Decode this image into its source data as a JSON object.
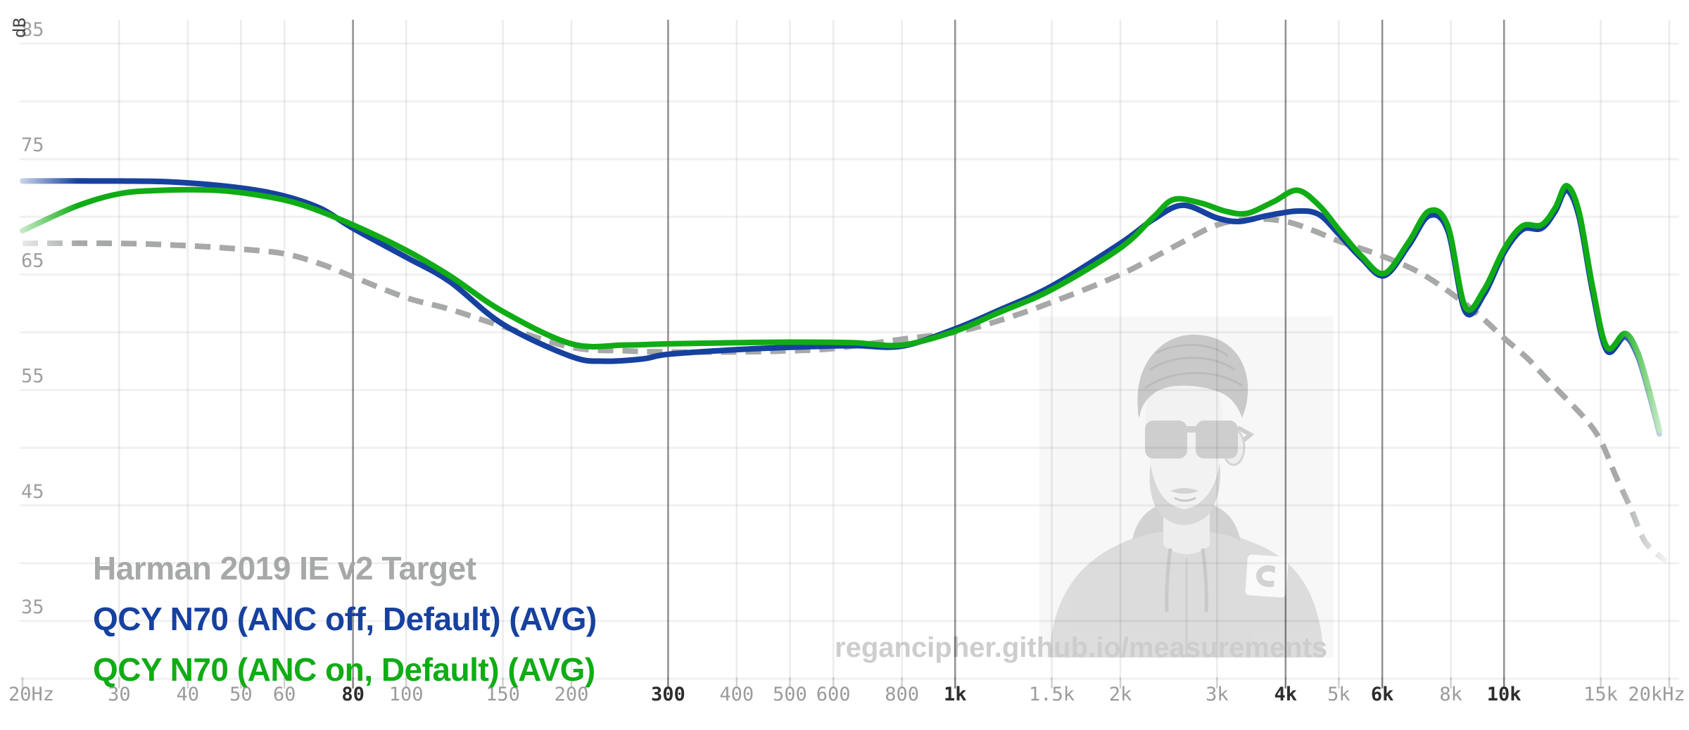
{
  "page": {
    "background": "#ffffff"
  },
  "watermark": {
    "text": "regancipher.github.io/measurements"
  },
  "chart_data": {
    "type": "line",
    "title": "",
    "x_scale": "log",
    "xlabel": "",
    "ylabel": "dB",
    "x_unit": "Hz",
    "y_unit": "dB",
    "x_range": [
      20,
      20000
    ],
    "y_range": [
      30,
      85
    ],
    "grid": true,
    "legend_position": "bottom-left",
    "y_axis": {
      "unit_label": "dB",
      "labeled_ticks": [
        85,
        75,
        65,
        55,
        45,
        35
      ],
      "minor_ticks": [
        80,
        70,
        60,
        50,
        40,
        30
      ]
    },
    "x_axis": {
      "ticks": [
        {
          "label": "20Hz",
          "f": 20,
          "em": false,
          "line": false
        },
        {
          "label": "30",
          "f": 30,
          "em": false,
          "line": true
        },
        {
          "label": "40",
          "f": 40,
          "em": false,
          "line": true
        },
        {
          "label": "50",
          "f": 50,
          "em": false,
          "line": true
        },
        {
          "label": "60",
          "f": 60,
          "em": false,
          "line": true
        },
        {
          "label": "80",
          "f": 80,
          "em": true,
          "line": true
        },
        {
          "label": "100",
          "f": 100,
          "em": false,
          "line": true
        },
        {
          "label": "150",
          "f": 150,
          "em": false,
          "line": true
        },
        {
          "label": "200",
          "f": 200,
          "em": false,
          "line": true
        },
        {
          "label": "300",
          "f": 300,
          "em": true,
          "line": true
        },
        {
          "label": "400",
          "f": 400,
          "em": false,
          "line": true
        },
        {
          "label": "500",
          "f": 500,
          "em": false,
          "line": true
        },
        {
          "label": "600",
          "f": 600,
          "em": false,
          "line": true
        },
        {
          "label": "800",
          "f": 800,
          "em": false,
          "line": true
        },
        {
          "label": "1k",
          "f": 1000,
          "em": true,
          "line": true
        },
        {
          "label": "1.5k",
          "f": 1500,
          "em": false,
          "line": true
        },
        {
          "label": "2k",
          "f": 2000,
          "em": false,
          "line": true
        },
        {
          "label": "3k",
          "f": 3000,
          "em": false,
          "line": true
        },
        {
          "label": "4k",
          "f": 4000,
          "em": true,
          "line": true
        },
        {
          "label": "5k",
          "f": 5000,
          "em": false,
          "line": true
        },
        {
          "label": "6k",
          "f": 6000,
          "em": true,
          "line": true
        },
        {
          "label": "8k",
          "f": 8000,
          "em": false,
          "line": true
        },
        {
          "label": "10k",
          "f": 10000,
          "em": true,
          "line": true
        },
        {
          "label": "15k",
          "f": 15000,
          "em": false,
          "line": true
        },
        {
          "label": "20kHz",
          "f": 20000,
          "em": false,
          "line": true
        }
      ]
    },
    "series": [
      {
        "name": "harman-target",
        "label": "Harman 2019 IE v2 Target",
        "color": "#a6a9a8",
        "style": "dashed",
        "width": 8,
        "dash": "22 13",
        "points": [
          [
            20,
            67.7
          ],
          [
            30,
            67.7
          ],
          [
            40,
            67.5
          ],
          [
            50,
            67.2
          ],
          [
            60,
            66.8
          ],
          [
            70,
            65.9
          ],
          [
            80,
            64.8
          ],
          [
            100,
            63.0
          ],
          [
            120,
            62.0
          ],
          [
            150,
            60.5
          ],
          [
            200,
            58.7
          ],
          [
            250,
            58.4
          ],
          [
            300,
            58.3
          ],
          [
            400,
            58.3
          ],
          [
            500,
            58.4
          ],
          [
            600,
            58.6
          ],
          [
            800,
            59.4
          ],
          [
            1000,
            60.0
          ],
          [
            1200,
            61.0
          ],
          [
            1500,
            62.6
          ],
          [
            2000,
            65.0
          ],
          [
            2500,
            67.4
          ],
          [
            3000,
            69.3
          ],
          [
            3500,
            69.8
          ],
          [
            4000,
            69.6
          ],
          [
            4500,
            68.8
          ],
          [
            5000,
            67.9
          ],
          [
            6000,
            66.6
          ],
          [
            7000,
            65.2
          ],
          [
            8000,
            63.4
          ],
          [
            9000,
            61.5
          ],
          [
            10000,
            59.5
          ],
          [
            11000,
            57.8
          ],
          [
            12000,
            55.9
          ],
          [
            14000,
            52.6
          ],
          [
            15000,
            50.6
          ],
          [
            16000,
            47.5
          ],
          [
            17000,
            44.8
          ],
          [
            18000,
            42.0
          ],
          [
            19000,
            40.8
          ],
          [
            19800,
            40.2
          ]
        ]
      },
      {
        "name": "qcy-n70-anc-off",
        "label": "QCY N70 (ANC off, Default) (AVG)",
        "color": "#17419f",
        "style": "solid",
        "width": 8,
        "dash": "",
        "points": [
          [
            20,
            73.1
          ],
          [
            30,
            73.1
          ],
          [
            38,
            73.0
          ],
          [
            50,
            72.5
          ],
          [
            60,
            71.8
          ],
          [
            70,
            70.7
          ],
          [
            80,
            69.0
          ],
          [
            100,
            66.5
          ],
          [
            120,
            64.4
          ],
          [
            150,
            60.7
          ],
          [
            200,
            57.9
          ],
          [
            230,
            57.5
          ],
          [
            270,
            57.7
          ],
          [
            300,
            58.1
          ],
          [
            400,
            58.5
          ],
          [
            500,
            58.7
          ],
          [
            650,
            58.85
          ],
          [
            800,
            58.8
          ],
          [
            1000,
            60.3
          ],
          [
            1200,
            61.9
          ],
          [
            1500,
            64.0
          ],
          [
            2000,
            67.7
          ],
          [
            2300,
            69.8
          ],
          [
            2600,
            71.0
          ],
          [
            3000,
            69.9
          ],
          [
            3300,
            69.6
          ],
          [
            3700,
            70.1
          ],
          [
            4200,
            70.5
          ],
          [
            4600,
            70.2
          ],
          [
            5000,
            68.5
          ],
          [
            5500,
            66.4
          ],
          [
            6050,
            64.9
          ],
          [
            6700,
            67.5
          ],
          [
            7300,
            70.1
          ],
          [
            7900,
            68.8
          ],
          [
            8500,
            61.8
          ],
          [
            9200,
            63.3
          ],
          [
            10000,
            66.9
          ],
          [
            10800,
            68.9
          ],
          [
            11700,
            69.0
          ],
          [
            12400,
            70.5
          ],
          [
            13000,
            72.3
          ],
          [
            13700,
            70.0
          ],
          [
            14500,
            63.5
          ],
          [
            15400,
            58.4
          ],
          [
            16600,
            59.6
          ],
          [
            17500,
            58.0
          ],
          [
            18300,
            55.0
          ],
          [
            19200,
            51.2
          ]
        ]
      },
      {
        "name": "qcy-n70-anc-on",
        "label": "QCY N70 (ANC on, Default) (AVG)",
        "color": "#10ac15",
        "style": "solid",
        "width": 8,
        "dash": "",
        "points": [
          [
            20,
            68.8
          ],
          [
            25,
            70.9
          ],
          [
            30,
            72.0
          ],
          [
            36,
            72.3
          ],
          [
            45,
            72.3
          ],
          [
            55,
            71.8
          ],
          [
            65,
            71.0
          ],
          [
            80,
            69.3
          ],
          [
            100,
            67.1
          ],
          [
            120,
            64.9
          ],
          [
            150,
            61.8
          ],
          [
            200,
            59.0
          ],
          [
            250,
            58.9
          ],
          [
            300,
            59.0
          ],
          [
            400,
            59.1
          ],
          [
            500,
            59.15
          ],
          [
            650,
            59.1
          ],
          [
            800,
            58.9
          ],
          [
            1000,
            60.1
          ],
          [
            1200,
            61.7
          ],
          [
            1500,
            63.7
          ],
          [
            2000,
            67.3
          ],
          [
            2300,
            70.0
          ],
          [
            2500,
            71.5
          ],
          [
            2800,
            71.2
          ],
          [
            3100,
            70.5
          ],
          [
            3400,
            70.3
          ],
          [
            3800,
            71.3
          ],
          [
            4200,
            72.3
          ],
          [
            4600,
            71.0
          ],
          [
            5000,
            68.9
          ],
          [
            5500,
            66.6
          ],
          [
            6050,
            65.1
          ],
          [
            6700,
            67.8
          ],
          [
            7300,
            70.5
          ],
          [
            7900,
            69.2
          ],
          [
            8500,
            62.2
          ],
          [
            9200,
            63.7
          ],
          [
            10000,
            67.2
          ],
          [
            10800,
            69.2
          ],
          [
            11700,
            69.3
          ],
          [
            12400,
            70.8
          ],
          [
            13000,
            72.7
          ],
          [
            13700,
            70.4
          ],
          [
            14500,
            63.9
          ],
          [
            15400,
            58.7
          ],
          [
            16600,
            59.9
          ],
          [
            17500,
            58.3
          ],
          [
            18300,
            55.3
          ],
          [
            19200,
            51.5
          ]
        ]
      }
    ]
  }
}
